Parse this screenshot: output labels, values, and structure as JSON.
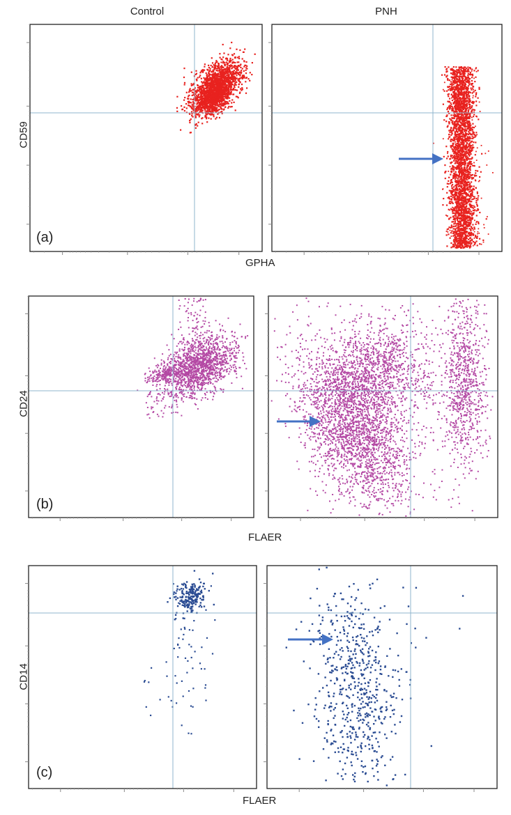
{
  "header": {
    "left_title": "Control",
    "right_title": "PNH"
  },
  "rows": [
    {
      "letter": "(a)",
      "ylabel": "CD59",
      "xlabel": "GPHA",
      "color": "#e8221f"
    },
    {
      "letter": "(b)",
      "ylabel": "CD24",
      "xlabel": "FLAER",
      "color": "#b449a4"
    },
    {
      "letter": "(c)",
      "ylabel": "CD14",
      "xlabel": "FLAER",
      "color": "#2b4c93"
    }
  ],
  "colors": {
    "gate_line": "#8fb4cc",
    "arrow": "#4472c4",
    "frame": "#222222"
  }
}
